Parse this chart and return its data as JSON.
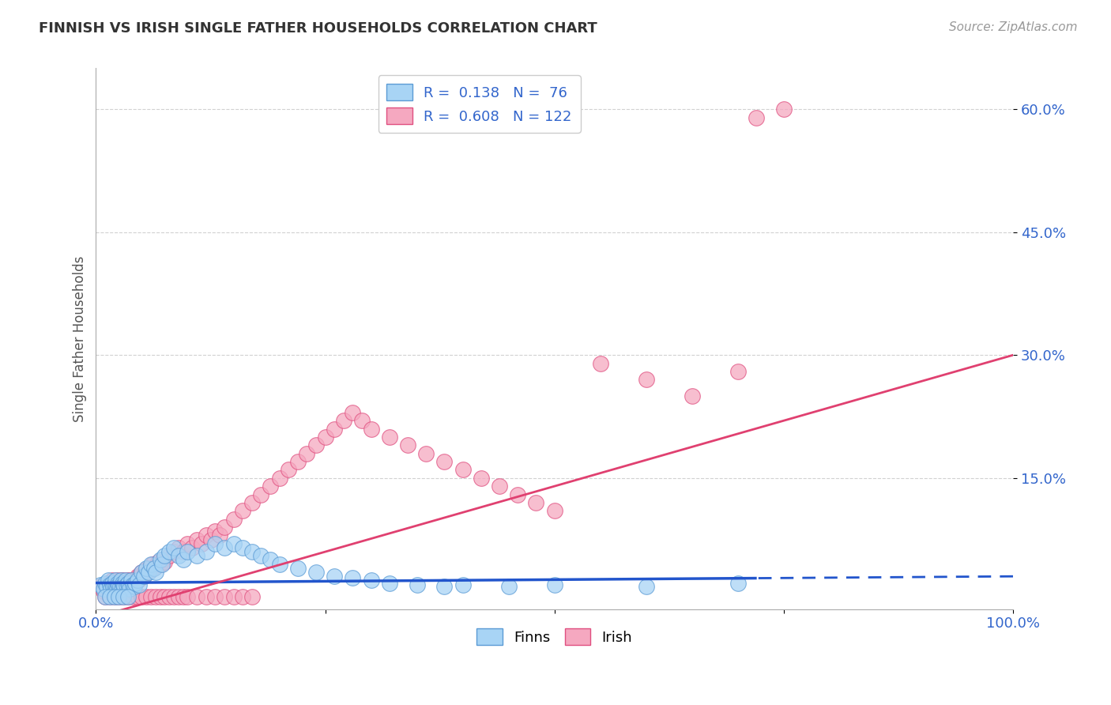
{
  "title": "FINNISH VS IRISH SINGLE FATHER HOUSEHOLDS CORRELATION CHART",
  "source_text": "Source: ZipAtlas.com",
  "ylabel": "Single Father Households",
  "xlim": [
    0,
    1.0
  ],
  "ylim": [
    -0.01,
    0.65
  ],
  "xticks": [
    0.0,
    0.25,
    0.5,
    0.75,
    1.0
  ],
  "xtick_labels": [
    "0.0%",
    "",
    "",
    "",
    "100.0%"
  ],
  "ytick_positions": [
    0.15,
    0.3,
    0.45,
    0.6
  ],
  "ytick_labels": [
    "15.0%",
    "30.0%",
    "45.0%",
    "60.0%"
  ],
  "finns_R": 0.138,
  "finns_N": 76,
  "irish_R": 0.608,
  "irish_N": 122,
  "finns_color": "#A8D4F5",
  "irish_color": "#F5A8C0",
  "finns_edge_color": "#5B9BD5",
  "irish_edge_color": "#E05080",
  "finns_line_color": "#2255CC",
  "irish_line_color": "#E04070",
  "legend_text_color": "#3366CC",
  "background_color": "#FFFFFF",
  "grid_color": "#CCCCCC",
  "title_color": "#333333",
  "source_color": "#999999",
  "ylabel_color": "#555555",
  "ytick_color": "#3366CC",
  "xtick_color": "#3366CC",
  "finns_line_solid_end": 0.72,
  "finns_line_intercept": 0.022,
  "finns_line_slope": 0.008,
  "irish_line_intercept": -0.02,
  "irish_line_slope": 0.32,
  "finns_scatter_x": [
    0.005,
    0.008,
    0.01,
    0.012,
    0.013,
    0.015,
    0.016,
    0.018,
    0.019,
    0.02,
    0.021,
    0.022,
    0.023,
    0.024,
    0.025,
    0.026,
    0.027,
    0.028,
    0.029,
    0.03,
    0.031,
    0.032,
    0.033,
    0.035,
    0.036,
    0.037,
    0.038,
    0.04,
    0.042,
    0.043,
    0.045,
    0.047,
    0.05,
    0.052,
    0.055,
    0.057,
    0.06,
    0.063,
    0.065,
    0.07,
    0.072,
    0.075,
    0.08,
    0.085,
    0.09,
    0.095,
    0.1,
    0.11,
    0.12,
    0.13,
    0.14,
    0.15,
    0.16,
    0.17,
    0.18,
    0.19,
    0.2,
    0.22,
    0.24,
    0.26,
    0.28,
    0.3,
    0.32,
    0.35,
    0.38,
    0.4,
    0.45,
    0.5,
    0.6,
    0.7,
    0.01,
    0.015,
    0.02,
    0.025,
    0.03,
    0.035
  ],
  "finns_scatter_y": [
    0.02,
    0.015,
    0.022,
    0.018,
    0.025,
    0.02,
    0.015,
    0.022,
    0.018,
    0.02,
    0.025,
    0.018,
    0.015,
    0.022,
    0.02,
    0.018,
    0.025,
    0.015,
    0.022,
    0.02,
    0.018,
    0.025,
    0.02,
    0.022,
    0.018,
    0.015,
    0.025,
    0.02,
    0.018,
    0.022,
    0.025,
    0.02,
    0.035,
    0.03,
    0.04,
    0.035,
    0.045,
    0.04,
    0.035,
    0.05,
    0.045,
    0.055,
    0.06,
    0.065,
    0.055,
    0.05,
    0.06,
    0.055,
    0.06,
    0.07,
    0.065,
    0.07,
    0.065,
    0.06,
    0.055,
    0.05,
    0.045,
    0.04,
    0.035,
    0.03,
    0.028,
    0.025,
    0.022,
    0.02,
    0.018,
    0.02,
    0.018,
    0.02,
    0.018,
    0.022,
    0.005,
    0.005,
    0.005,
    0.005,
    0.005,
    0.005
  ],
  "irish_scatter_x": [
    0.005,
    0.008,
    0.01,
    0.012,
    0.013,
    0.015,
    0.016,
    0.017,
    0.018,
    0.019,
    0.02,
    0.021,
    0.022,
    0.023,
    0.024,
    0.025,
    0.026,
    0.027,
    0.028,
    0.029,
    0.03,
    0.031,
    0.032,
    0.033,
    0.034,
    0.035,
    0.036,
    0.037,
    0.038,
    0.039,
    0.04,
    0.041,
    0.042,
    0.043,
    0.044,
    0.045,
    0.046,
    0.047,
    0.048,
    0.05,
    0.052,
    0.054,
    0.056,
    0.058,
    0.06,
    0.062,
    0.065,
    0.068,
    0.07,
    0.073,
    0.075,
    0.08,
    0.085,
    0.09,
    0.095,
    0.1,
    0.105,
    0.11,
    0.115,
    0.12,
    0.125,
    0.13,
    0.135,
    0.14,
    0.15,
    0.16,
    0.17,
    0.18,
    0.19,
    0.2,
    0.21,
    0.22,
    0.23,
    0.24,
    0.25,
    0.26,
    0.27,
    0.28,
    0.29,
    0.3,
    0.32,
    0.34,
    0.36,
    0.38,
    0.4,
    0.42,
    0.44,
    0.46,
    0.48,
    0.5,
    0.55,
    0.6,
    0.65,
    0.7,
    0.72,
    0.75,
    0.01,
    0.015,
    0.02,
    0.025,
    0.03,
    0.035,
    0.04,
    0.045,
    0.05,
    0.055,
    0.06,
    0.065,
    0.07,
    0.075,
    0.08,
    0.085,
    0.09,
    0.095,
    0.1,
    0.11,
    0.12,
    0.13,
    0.14,
    0.15,
    0.16,
    0.17
  ],
  "irish_scatter_y": [
    0.018,
    0.012,
    0.02,
    0.015,
    0.022,
    0.018,
    0.015,
    0.02,
    0.025,
    0.018,
    0.022,
    0.02,
    0.015,
    0.025,
    0.02,
    0.018,
    0.022,
    0.025,
    0.02,
    0.018,
    0.025,
    0.02,
    0.022,
    0.018,
    0.025,
    0.02,
    0.022,
    0.025,
    0.02,
    0.022,
    0.025,
    0.022,
    0.025,
    0.022,
    0.025,
    0.03,
    0.025,
    0.03,
    0.028,
    0.035,
    0.03,
    0.038,
    0.035,
    0.04,
    0.038,
    0.045,
    0.042,
    0.048,
    0.045,
    0.05,
    0.048,
    0.055,
    0.06,
    0.065,
    0.06,
    0.07,
    0.065,
    0.075,
    0.07,
    0.08,
    0.075,
    0.085,
    0.08,
    0.09,
    0.1,
    0.11,
    0.12,
    0.13,
    0.14,
    0.15,
    0.16,
    0.17,
    0.18,
    0.19,
    0.2,
    0.21,
    0.22,
    0.23,
    0.22,
    0.21,
    0.2,
    0.19,
    0.18,
    0.17,
    0.16,
    0.15,
    0.14,
    0.13,
    0.12,
    0.11,
    0.29,
    0.27,
    0.25,
    0.28,
    0.59,
    0.6,
    0.005,
    0.005,
    0.005,
    0.005,
    0.005,
    0.005,
    0.005,
    0.005,
    0.005,
    0.005,
    0.005,
    0.005,
    0.005,
    0.005,
    0.005,
    0.005,
    0.005,
    0.005,
    0.005,
    0.005,
    0.005,
    0.005,
    0.005,
    0.005,
    0.005,
    0.005
  ]
}
